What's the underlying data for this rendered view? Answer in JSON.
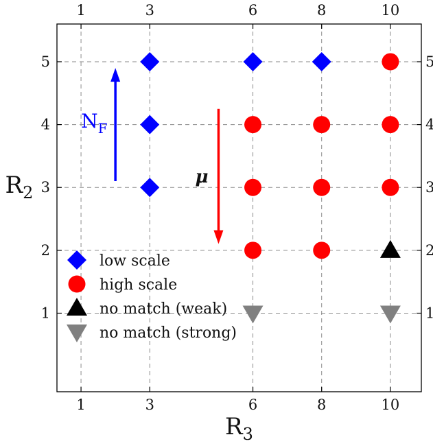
{
  "chart_data": {
    "type": "scatter",
    "x_ticks": [
      "1",
      "3",
      "6",
      "8",
      "10"
    ],
    "y_ticks": [
      "1",
      "2",
      "3",
      "4",
      "5"
    ],
    "xlim": [
      0.3,
      10.9
    ],
    "ylim": [
      -0.25,
      5.6
    ],
    "xlabel": "R",
    "xlabel_sub": "3",
    "ylabel": "R",
    "ylabel_sub": "2",
    "grid": true,
    "series": [
      {
        "name": "low scale",
        "marker": "diamond",
        "color": "#0000ff",
        "points": [
          [
            3,
            5
          ],
          [
            6,
            5
          ],
          [
            8,
            5
          ],
          [
            3,
            4
          ],
          [
            3,
            3
          ]
        ]
      },
      {
        "name": "high scale",
        "marker": "circle",
        "color": "#ff0000",
        "points": [
          [
            10,
            5
          ],
          [
            6,
            4
          ],
          [
            8,
            4
          ],
          [
            10,
            4
          ],
          [
            6,
            3
          ],
          [
            8,
            3
          ],
          [
            10,
            3
          ],
          [
            6,
            2
          ],
          [
            8,
            2
          ]
        ]
      },
      {
        "name": "no match (weak)",
        "marker": "triangle-up",
        "color": "#000000",
        "points": [
          [
            10,
            2
          ]
        ]
      },
      {
        "name": "no match (strong)",
        "marker": "triangle-down",
        "color": "#808080",
        "points": [
          [
            6,
            1
          ],
          [
            10,
            1
          ]
        ]
      }
    ],
    "annotations": [
      {
        "label": "N",
        "label_sub": "F",
        "color": "#0000ff",
        "direction": "up",
        "x": 2.0,
        "y_from": 3.1,
        "y_to": 4.9
      },
      {
        "label": "μ",
        "color": "#ff0000",
        "direction": "down",
        "x": 5.0,
        "y_from": 4.25,
        "y_to": 2.1
      }
    ],
    "legend_position": "bottom-left"
  }
}
